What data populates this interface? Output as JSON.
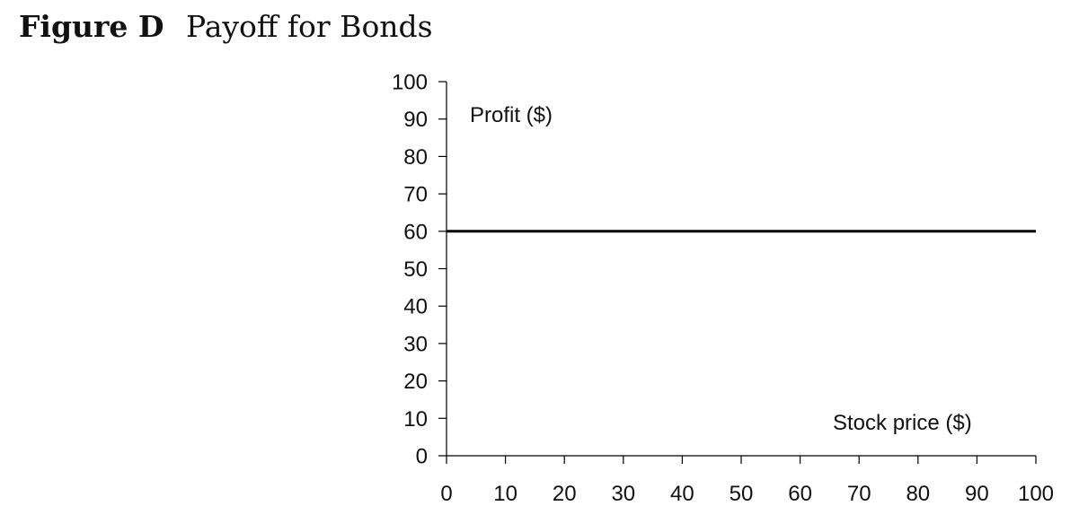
{
  "figure": {
    "label": "Figure D",
    "title": "Payoff for Bonds"
  },
  "chart_data": {
    "type": "line",
    "title": "Payoff for Bonds",
    "xlabel": "Stock price ($)",
    "ylabel": "Profit ($)",
    "xlim": [
      0,
      100
    ],
    "ylim": [
      0,
      100
    ],
    "xticks": [
      0,
      10,
      20,
      30,
      40,
      50,
      60,
      70,
      80,
      90,
      100
    ],
    "yticks": [
      0,
      10,
      20,
      30,
      40,
      50,
      60,
      70,
      80,
      90,
      100
    ],
    "grid": false,
    "legend": "none",
    "series": [
      {
        "x": [
          0,
          100
        ],
        "y": [
          60,
          60
        ],
        "color": "#000000"
      }
    ]
  }
}
